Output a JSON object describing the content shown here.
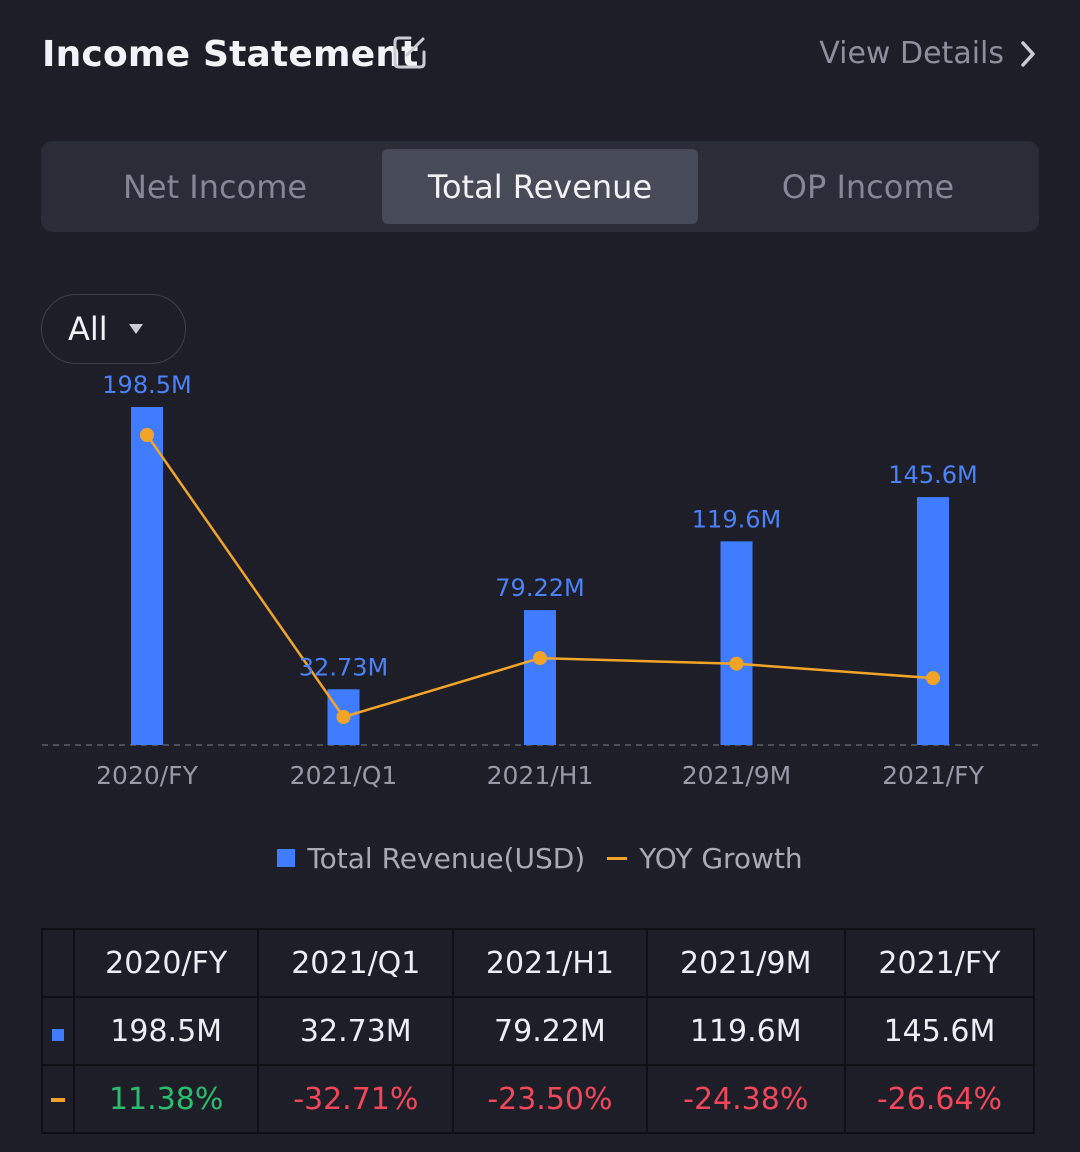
{
  "header": {
    "title": "Income Statement",
    "view_details": "View Details"
  },
  "tabs": [
    {
      "label": "Net Income",
      "active": false
    },
    {
      "label": "Total Revenue",
      "active": true
    },
    {
      "label": "OP Income",
      "active": false
    }
  ],
  "filter": {
    "label": "All"
  },
  "colors": {
    "bar": "#3f7cff",
    "line": "#f2a428",
    "positive": "#2bbd6e",
    "negative": "#f2465a"
  },
  "chart_data": {
    "type": "bar",
    "categories": [
      "2020/FY",
      "2021/Q1",
      "2021/H1",
      "2021/9M",
      "2021/FY"
    ],
    "series": [
      {
        "name": "Total Revenue(USD)",
        "type": "bar",
        "values": [
          198.5,
          32.73,
          79.22,
          119.6,
          145.6
        ],
        "labels": [
          "198.5M",
          "32.73M",
          "79.22M",
          "119.6M",
          "145.6M"
        ]
      },
      {
        "name": "YOY Growth",
        "type": "line",
        "values": [
          11.38,
          -32.71,
          -23.5,
          -24.38,
          -26.64
        ]
      }
    ],
    "legend": "bottom"
  },
  "legend": {
    "bar_label": "Total Revenue(USD)",
    "line_label": "YOY Growth"
  },
  "table": {
    "headers": [
      "2020/FY",
      "2021/Q1",
      "2021/H1",
      "2021/9M",
      "2021/FY"
    ],
    "revenue": [
      "198.5M",
      "32.73M",
      "79.22M",
      "119.6M",
      "145.6M"
    ],
    "growth": [
      "11.38%",
      "-32.71%",
      "-23.50%",
      "-24.38%",
      "-26.64%"
    ]
  }
}
